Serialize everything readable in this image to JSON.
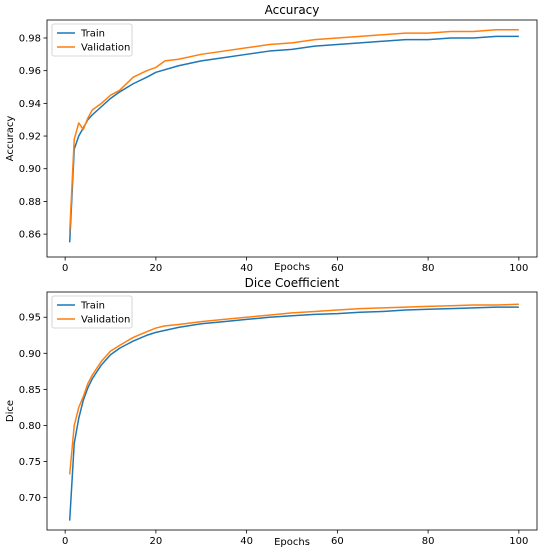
{
  "chart_data": [
    {
      "type": "line",
      "title": "Accuracy",
      "xlabel": "Epochs",
      "ylabel": "Accuracy",
      "xlim": [
        -4,
        104
      ],
      "ylim": [
        0.846,
        0.991
      ],
      "xticks": [
        0,
        20,
        40,
        60,
        80,
        100
      ],
      "yticks": [
        0.86,
        0.88,
        0.9,
        0.92,
        0.94,
        0.96,
        0.98
      ],
      "xtick_labels": [
        "0",
        "20",
        "40",
        "60",
        "80",
        "100"
      ],
      "ytick_labels": [
        "0.86",
        "0.88",
        "0.90",
        "0.92",
        "0.94",
        "0.96",
        "0.98"
      ],
      "legend": "top-left",
      "grid": false,
      "series": [
        {
          "name": "Train",
          "color": "#1f77b4",
          "x": [
            1,
            2,
            3,
            4,
            5,
            6,
            8,
            10,
            12,
            15,
            18,
            20,
            25,
            30,
            35,
            40,
            45,
            50,
            55,
            60,
            65,
            70,
            75,
            80,
            85,
            90,
            95,
            100
          ],
          "y": [
            0.855,
            0.912,
            0.92,
            0.925,
            0.93,
            0.933,
            0.938,
            0.943,
            0.947,
            0.952,
            0.956,
            0.959,
            0.963,
            0.966,
            0.968,
            0.97,
            0.972,
            0.973,
            0.975,
            0.976,
            0.977,
            0.978,
            0.979,
            0.979,
            0.98,
            0.98,
            0.981,
            0.981
          ]
        },
        {
          "name": "Validation",
          "color": "#ff7f0e",
          "x": [
            1,
            2,
            3,
            4,
            5,
            6,
            8,
            10,
            12,
            15,
            18,
            20,
            22,
            25,
            30,
            35,
            40,
            45,
            50,
            55,
            60,
            65,
            70,
            75,
            80,
            85,
            90,
            95,
            100
          ],
          "y": [
            0.861,
            0.918,
            0.928,
            0.924,
            0.931,
            0.936,
            0.94,
            0.945,
            0.948,
            0.956,
            0.96,
            0.962,
            0.966,
            0.967,
            0.97,
            0.972,
            0.974,
            0.976,
            0.977,
            0.979,
            0.98,
            0.981,
            0.982,
            0.983,
            0.983,
            0.984,
            0.984,
            0.985,
            0.985
          ]
        }
      ]
    },
    {
      "type": "line",
      "title": "Dice Coefficient",
      "xlabel": "Epochs",
      "ylabel": "Dice",
      "xlim": [
        -4,
        104
      ],
      "ylim": [
        0.655,
        0.985
      ],
      "xticks": [
        0,
        20,
        40,
        60,
        80,
        100
      ],
      "yticks": [
        0.7,
        0.75,
        0.8,
        0.85,
        0.9,
        0.95
      ],
      "xtick_labels": [
        "0",
        "20",
        "40",
        "60",
        "80",
        "100"
      ],
      "ytick_labels": [
        "0.70",
        "0.75",
        "0.80",
        "0.85",
        "0.90",
        "0.95"
      ],
      "legend": "top-left",
      "grid": false,
      "series": [
        {
          "name": "Train",
          "color": "#1f77b4",
          "x": [
            1,
            2,
            3,
            4,
            5,
            6,
            8,
            10,
            12,
            15,
            18,
            20,
            25,
            30,
            35,
            40,
            45,
            50,
            55,
            60,
            65,
            70,
            75,
            80,
            85,
            90,
            95,
            100
          ],
          "y": [
            0.668,
            0.775,
            0.81,
            0.835,
            0.852,
            0.865,
            0.884,
            0.898,
            0.907,
            0.917,
            0.925,
            0.929,
            0.936,
            0.941,
            0.944,
            0.947,
            0.95,
            0.952,
            0.954,
            0.955,
            0.957,
            0.958,
            0.96,
            0.961,
            0.962,
            0.963,
            0.964,
            0.964
          ]
        },
        {
          "name": "Validation",
          "color": "#ff7f0e",
          "x": [
            1,
            2,
            3,
            4,
            5,
            6,
            8,
            10,
            12,
            15,
            18,
            20,
            22,
            25,
            30,
            35,
            40,
            45,
            50,
            55,
            60,
            65,
            70,
            75,
            80,
            85,
            90,
            95,
            100
          ],
          "y": [
            0.732,
            0.8,
            0.825,
            0.84,
            0.858,
            0.87,
            0.889,
            0.903,
            0.911,
            0.922,
            0.93,
            0.935,
            0.938,
            0.94,
            0.944,
            0.947,
            0.95,
            0.953,
            0.956,
            0.958,
            0.96,
            0.962,
            0.963,
            0.964,
            0.965,
            0.966,
            0.967,
            0.967,
            0.968
          ]
        }
      ]
    }
  ]
}
